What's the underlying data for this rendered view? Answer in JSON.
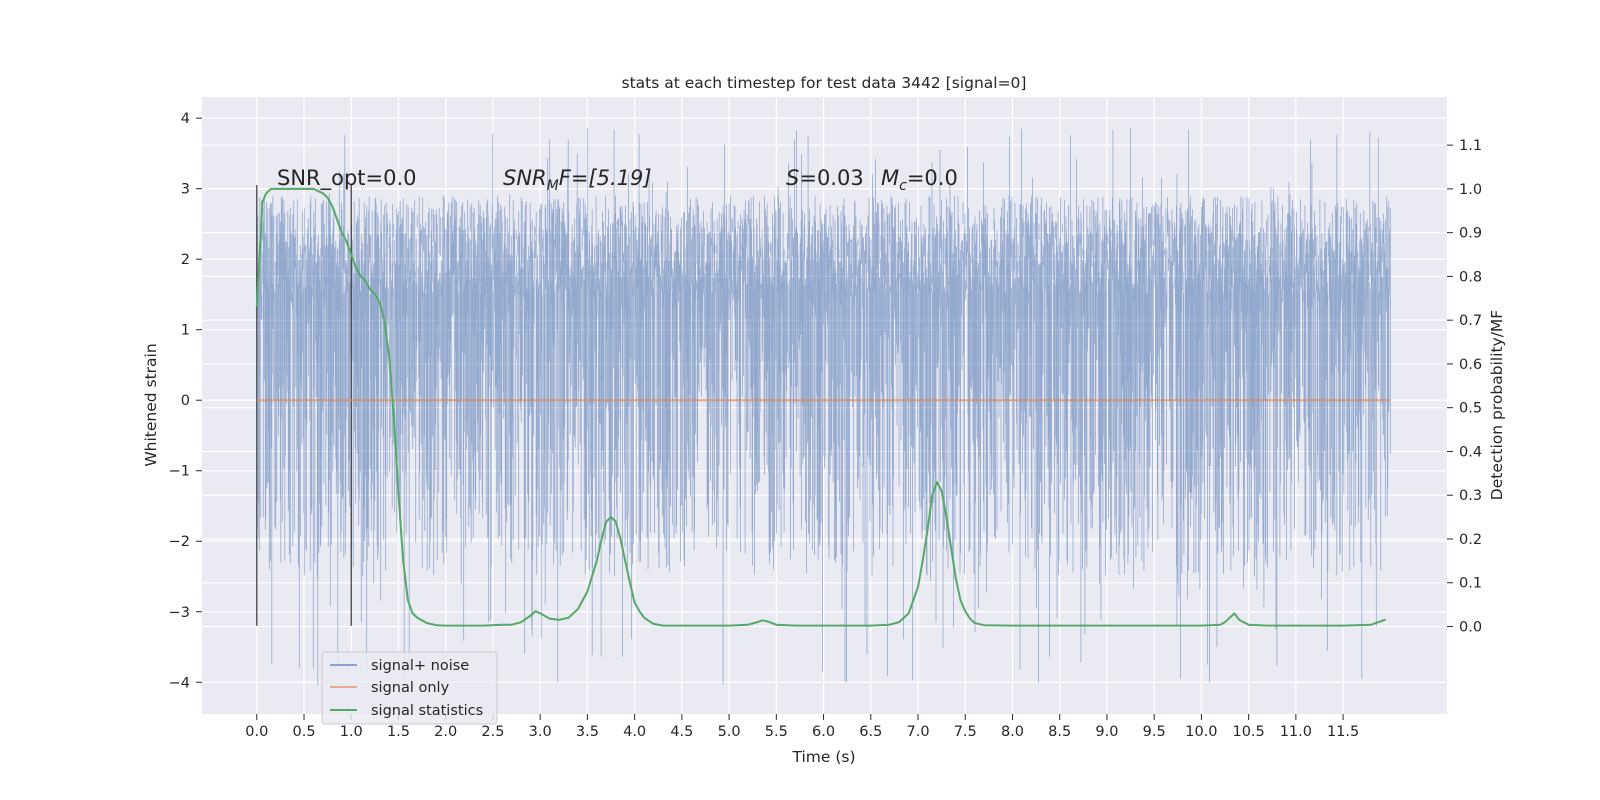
{
  "chart_data": {
    "type": "line",
    "title": "stats at each timestep for test data 3442 [signal=0]",
    "xlabel": "Time (s)",
    "ylabel": "Whitened strain",
    "ylabel_right": "Detection probability/MF",
    "xlim": [
      -0.58,
      12.6
    ],
    "ylim": [
      -4.45,
      4.3
    ],
    "ylim_right": [
      -0.2,
      1.21
    ],
    "x_ticks": [
      "0.0",
      "0.5",
      "1.0",
      "1.5",
      "2.0",
      "2.5",
      "3.0",
      "3.5",
      "4.0",
      "4.5",
      "5.0",
      "5.5",
      "6.0",
      "6.5",
      "7.0",
      "7.5",
      "8.0",
      "8.5",
      "9.0",
      "9.5",
      "10.0",
      "10.5",
      "11.0",
      "11.5"
    ],
    "y_ticks": [
      "4",
      "3",
      "2",
      "1",
      "0",
      "−1",
      "−2",
      "−3",
      "−4"
    ],
    "y_ticks_right": [
      "1.1",
      "1.0",
      "0.9",
      "0.8",
      "0.7",
      "0.6",
      "0.5",
      "0.4",
      "0.3",
      "0.2",
      "0.1",
      "0.0"
    ],
    "grid": true,
    "legend_position": "lower-left",
    "annotations": {
      "snr_opt": "SNR_opt=0.0",
      "snr_mf_prefix": "SNR",
      "snr_mf_sub": "M",
      "snr_mf_suffix": "F=[5.19]",
      "s_var": "S",
      "s_val": "=0.03",
      "mc_var": "M",
      "mc_sub": "c",
      "mc_val": "=0.0"
    },
    "vertical_markers": [
      0.0,
      1.0
    ],
    "series": [
      {
        "name": "signal+ noise",
        "color": "#4c72b0",
        "x_range": [
          0.0,
          12.0
        ],
        "band_min": [
          -2.5,
          2.5
        ],
        "band_max": [
          1.5,
          2.9
        ],
        "extreme_min": -4.05,
        "extreme_max": 3.9
      },
      {
        "name": "signal only",
        "color": "#dd8452",
        "x": [
          0.0,
          12.0
        ],
        "values": [
          0.0,
          0.0
        ]
      },
      {
        "name": "signal statistics",
        "color": "#55a868",
        "axis": "right",
        "x": [
          0.0,
          0.03,
          0.06,
          0.1,
          0.15,
          0.2,
          0.3,
          0.4,
          0.5,
          0.6,
          0.7,
          0.75,
          0.8,
          0.85,
          0.9,
          0.95,
          1.0,
          1.05,
          1.1,
          1.15,
          1.2,
          1.25,
          1.3,
          1.35,
          1.4,
          1.45,
          1.5,
          1.55,
          1.6,
          1.65,
          1.7,
          1.8,
          1.9,
          2.0,
          2.2,
          2.4,
          2.6,
          2.7,
          2.8,
          2.9,
          2.95,
          3.0,
          3.1,
          3.2,
          3.3,
          3.4,
          3.5,
          3.6,
          3.65,
          3.7,
          3.75,
          3.8,
          3.85,
          3.9,
          3.95,
          4.0,
          4.05,
          4.1,
          4.2,
          4.3,
          4.5,
          5.0,
          5.2,
          5.3,
          5.35,
          5.4,
          5.5,
          5.7,
          6.0,
          6.5,
          6.7,
          6.8,
          6.9,
          7.0,
          7.05,
          7.1,
          7.15,
          7.2,
          7.25,
          7.3,
          7.35,
          7.4,
          7.45,
          7.5,
          7.55,
          7.6,
          7.7,
          8.0,
          9.0,
          10.0,
          10.2,
          10.25,
          10.3,
          10.35,
          10.4,
          10.5,
          10.7,
          11.0,
          11.5,
          11.8,
          11.9,
          11.95
        ],
        "values": [
          0.73,
          0.85,
          0.97,
          0.99,
          1.0,
          1.0,
          1.0,
          1.0,
          1.0,
          1.0,
          0.99,
          0.98,
          0.96,
          0.93,
          0.9,
          0.88,
          0.85,
          0.82,
          0.8,
          0.79,
          0.77,
          0.76,
          0.74,
          0.7,
          0.62,
          0.48,
          0.3,
          0.15,
          0.06,
          0.03,
          0.02,
          0.008,
          0.003,
          0.002,
          0.002,
          0.002,
          0.004,
          0.004,
          0.01,
          0.025,
          0.035,
          0.03,
          0.018,
          0.015,
          0.02,
          0.04,
          0.08,
          0.15,
          0.2,
          0.24,
          0.25,
          0.24,
          0.2,
          0.15,
          0.1,
          0.055,
          0.035,
          0.02,
          0.006,
          0.002,
          0.002,
          0.002,
          0.004,
          0.01,
          0.014,
          0.012,
          0.004,
          0.002,
          0.002,
          0.002,
          0.004,
          0.01,
          0.03,
          0.09,
          0.15,
          0.22,
          0.3,
          0.33,
          0.31,
          0.25,
          0.18,
          0.11,
          0.06,
          0.035,
          0.018,
          0.008,
          0.003,
          0.002,
          0.002,
          0.002,
          0.004,
          0.01,
          0.02,
          0.03,
          0.015,
          0.004,
          0.002,
          0.002,
          0.002,
          0.004,
          0.012,
          0.016
        ]
      }
    ]
  }
}
